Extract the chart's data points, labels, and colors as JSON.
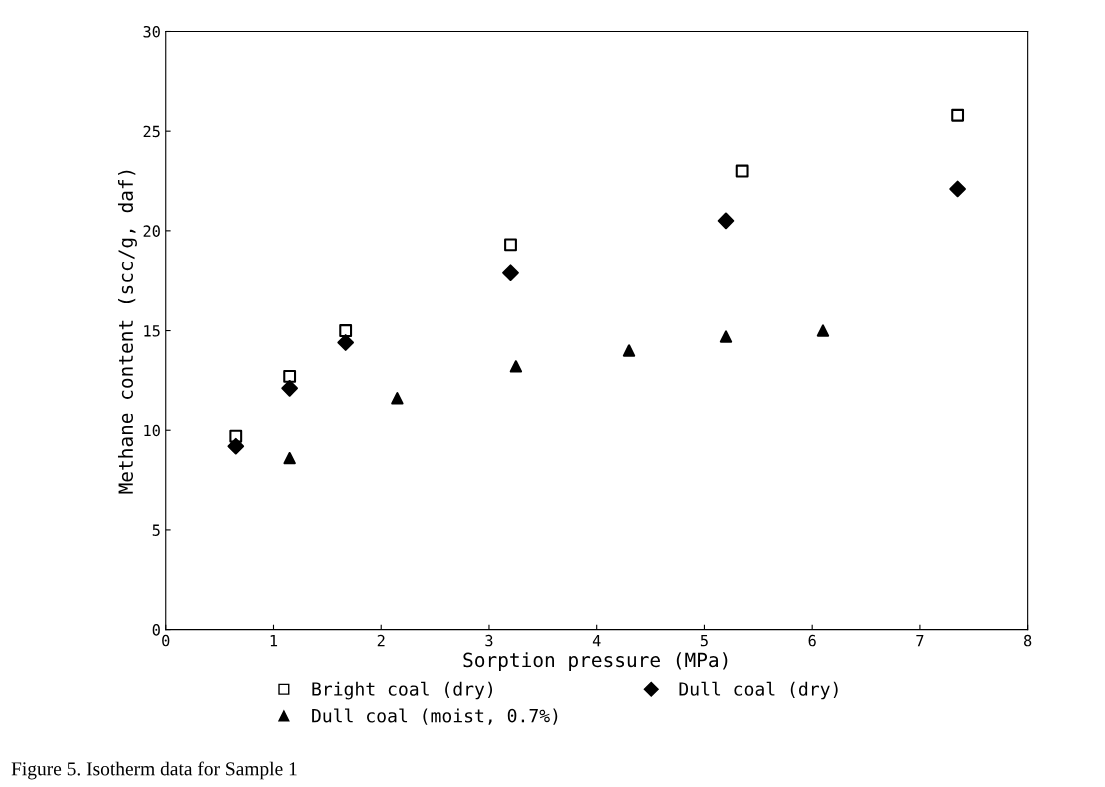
{
  "chart_data": {
    "type": "scatter",
    "xlabel": "Sorption pressure (MPa)",
    "ylabel": "Methane content (scc/g, daf)",
    "xlim": [
      0,
      8
    ],
    "xticks": [
      0,
      1,
      2,
      3,
      4,
      5,
      6,
      7,
      8
    ],
    "ylim": [
      0,
      30
    ],
    "yticks": [
      0,
      5,
      10,
      15,
      20,
      25,
      30
    ],
    "grid": false,
    "legend": "bottom",
    "annotations": [
      "Figure 5. Isotherm data for Sample 1"
    ],
    "series": [
      {
        "name": "Bright coal (dry)",
        "color": "#000000",
        "marker": "square",
        "x": [
          0.65,
          1.15,
          1.67,
          3.2,
          5.35,
          7.35
        ],
        "values": [
          9.7,
          12.7,
          15.0,
          19.3,
          23.0,
          25.8
        ]
      },
      {
        "name": "Dull coal (dry)",
        "color": "#000000",
        "marker": "diamond",
        "x": [
          0.65,
          1.15,
          1.67,
          3.2,
          5.2,
          7.35
        ],
        "values": [
          9.2,
          12.1,
          14.4,
          17.9,
          20.5,
          22.1
        ]
      },
      {
        "name": "Dull coal (moist, 0.7%)",
        "color": "#000000",
        "marker": "triangle",
        "x": [
          1.15,
          2.15,
          3.25,
          4.3,
          5.2,
          6.1
        ],
        "values": [
          8.6,
          11.6,
          13.2,
          14.0,
          14.7,
          15.0
        ]
      }
    ]
  }
}
